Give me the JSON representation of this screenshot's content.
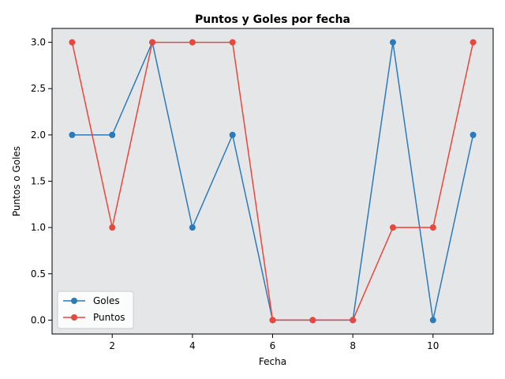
{
  "chart_data": {
    "type": "line",
    "title": "Puntos y Goles por fecha",
    "xlabel": "Fecha",
    "ylabel": "Puntos o Goles",
    "x": [
      1,
      2,
      3,
      4,
      5,
      6,
      7,
      8,
      9,
      10,
      11
    ],
    "xlim": [
      0.5,
      11.5
    ],
    "ylim": [
      -0.15,
      3.15
    ],
    "xticks": [
      2,
      4,
      6,
      8,
      10
    ],
    "xtick_labels": [
      "2",
      "4",
      "6",
      "8",
      "10"
    ],
    "yticks": [
      0,
      0.5,
      1,
      1.5,
      2,
      2.5,
      3
    ],
    "ytick_labels": [
      "0.0",
      "0.5",
      "1.0",
      "1.5",
      "2.0",
      "2.5",
      "3.0"
    ],
    "grid": false,
    "legend_position": "lower-left",
    "series": [
      {
        "name": "Goles",
        "color": "#2b7bba",
        "values": [
          2,
          2,
          3,
          1,
          2,
          0,
          0,
          0,
          3,
          0,
          2
        ]
      },
      {
        "name": "Puntos",
        "color": "#e8473c",
        "values": [
          3,
          1,
          3,
          3,
          3,
          0,
          0,
          0,
          1,
          1,
          3
        ]
      }
    ]
  },
  "colors": {
    "plot_background": "#e5e6e8",
    "page_background": "#ffffff"
  }
}
